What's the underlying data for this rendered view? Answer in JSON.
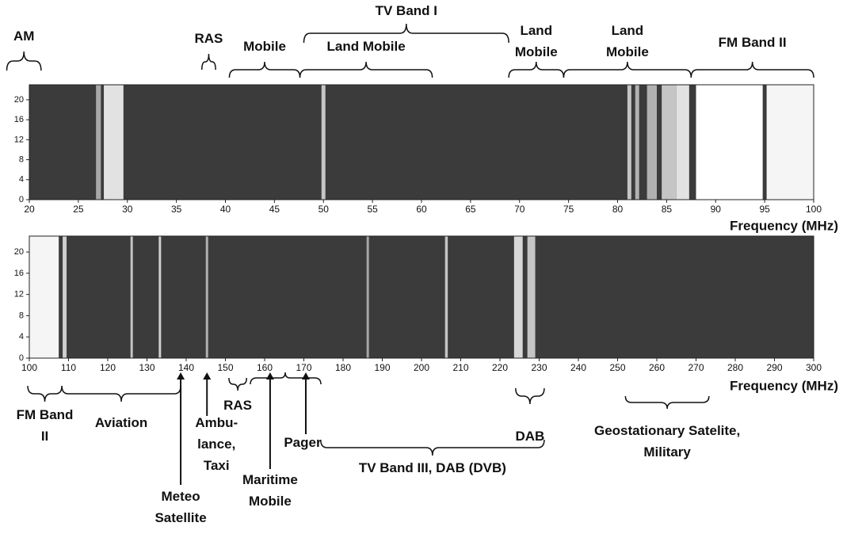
{
  "chart_data": [
    {
      "type": "spectrogram",
      "xlabel": "Frequency (MHz)",
      "xlim": [
        20,
        100
      ],
      "xticks": [
        20,
        25,
        30,
        35,
        40,
        45,
        50,
        55,
        60,
        65,
        70,
        75,
        80,
        85,
        90,
        95,
        100
      ],
      "ylim": [
        0,
        23
      ],
      "yticks": [
        0,
        4,
        8,
        12,
        16,
        20
      ],
      "bands": [
        {
          "range": [
            26.8,
            27.3
          ],
          "level": 0.55
        },
        {
          "range": [
            27.6,
            29.6
          ],
          "level": 0.85
        },
        {
          "range": [
            49.8,
            50.2
          ],
          "level": 0.7
        },
        {
          "range": [
            81,
            81.4
          ],
          "level": 0.7
        },
        {
          "range": [
            81.8,
            82.2
          ],
          "level": 0.6
        },
        {
          "range": [
            83,
            84
          ],
          "level": 0.6
        },
        {
          "range": [
            84.5,
            86
          ],
          "level": 0.7
        },
        {
          "range": [
            86,
            87.3
          ],
          "level": 0.85
        },
        {
          "range": [
            88,
            94.8
          ],
          "level": 1
        },
        {
          "range": [
            95.2,
            100
          ],
          "level": 0.95
        }
      ],
      "annotations": [
        {
          "label": [
            "AM"
          ],
          "range": [
            17.7,
            21.2
          ]
        },
        {
          "label": [
            "RAS"
          ],
          "range": [
            37.6,
            39
          ]
        },
        {
          "label": [
            "Mobile"
          ],
          "range": [
            40.4,
            47.6
          ]
        },
        {
          "label": [
            "Land Mobile"
          ],
          "range": [
            47.6,
            61.1
          ]
        },
        {
          "label": [
            "TV Band I"
          ],
          "range": [
            48,
            68.9
          ]
        },
        {
          "label": [
            "Land",
            "Mobile"
          ],
          "range": [
            68.9,
            74.5
          ]
        },
        {
          "label": [
            "Land",
            "Mobile"
          ],
          "range": [
            74.5,
            87.5
          ]
        },
        {
          "label": [
            "FM Band II"
          ],
          "range": [
            87.5,
            100
          ]
        }
      ],
      "arrows": []
    },
    {
      "type": "spectrogram",
      "xlabel": "Frequency (MHz)",
      "xlim": [
        100,
        300
      ],
      "xticks": [
        100,
        110,
        120,
        130,
        140,
        150,
        160,
        170,
        180,
        190,
        200,
        210,
        220,
        230,
        240,
        250,
        260,
        270,
        280,
        290,
        300
      ],
      "ylim": [
        0,
        23
      ],
      "yticks": [
        0,
        4,
        8,
        12,
        16,
        20
      ],
      "bands": [
        {
          "range": [
            100,
            107.5
          ],
          "level": 0.95
        },
        {
          "range": [
            108.5,
            109.5
          ],
          "level": 0.75
        },
        {
          "range": [
            125.8,
            126.4
          ],
          "level": 0.7
        },
        {
          "range": [
            133,
            133.6
          ],
          "level": 0.75
        },
        {
          "range": [
            145,
            145.6
          ],
          "level": 0.6
        },
        {
          "range": [
            186,
            186.6
          ],
          "level": 0.55
        },
        {
          "range": [
            206,
            206.7
          ],
          "level": 0.7
        },
        {
          "range": [
            223.6,
            225.8
          ],
          "level": 0.8
        },
        {
          "range": [
            227,
            229
          ],
          "level": 0.7
        }
      ],
      "annotations": [
        {
          "label": [
            "FM Band",
            "II"
          ],
          "range": [
            99.6,
            108.3
          ]
        },
        {
          "label": [
            "Aviation"
          ],
          "range": [
            108.3,
            138.6
          ]
        },
        {
          "label": [
            "RAS"
          ],
          "range": [
            150.9,
            155.4
          ]
        },
        {
          "label": [
            "DAB"
          ],
          "range": [
            224,
            231.3
          ]
        },
        {
          "label": [
            "TV Band III, DAB (DVB)"
          ],
          "range": [
            174.3,
            231.3
          ]
        },
        {
          "label": [
            "Geostationary Satelite,",
            "Military"
          ],
          "range": [
            252,
            273.3
          ]
        }
      ],
      "arrows": [
        {
          "label": [
            "Meteo",
            "Satellite"
          ],
          "x": 138.6
        },
        {
          "label": [
            "Ambu-",
            "lance,",
            "Taxi"
          ],
          "x": 145.3
        },
        {
          "label": [
            "Maritime",
            "Mobile"
          ],
          "x": 161.4
        },
        {
          "label": [
            "Pager"
          ],
          "x": 170.5
        }
      ]
    }
  ]
}
